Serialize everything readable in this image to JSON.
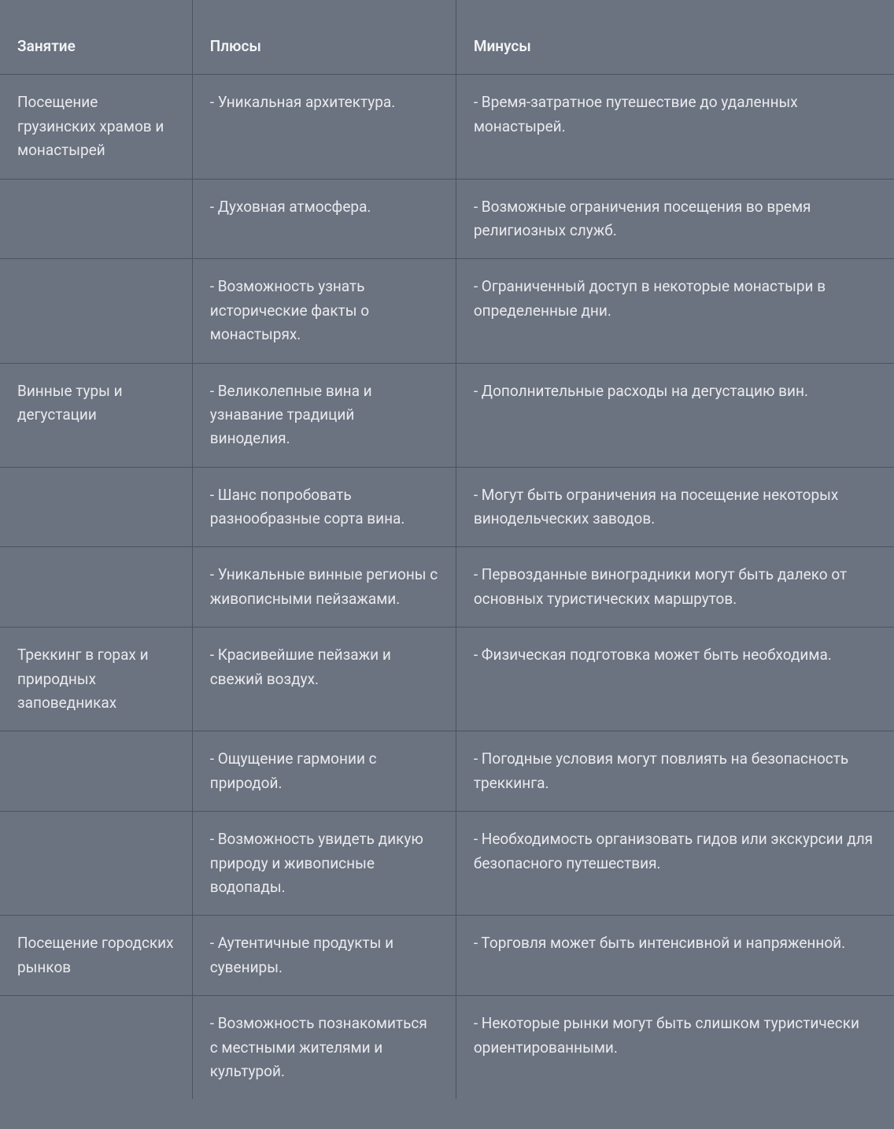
{
  "table": {
    "background_color": "#6b7280",
    "border_color": "#4a5461",
    "text_color": "#e8eaed",
    "header_text_color": "#f1f3f5",
    "font_size": 19,
    "columns": [
      {
        "key": "activity",
        "label": "Занятие",
        "width_pct": 21.5
      },
      {
        "key": "plus",
        "label": "Плюсы",
        "width_pct": 29.5
      },
      {
        "key": "minus",
        "label": "Минусы",
        "width_pct": 49.0
      }
    ],
    "rows": [
      {
        "activity": "Посещение грузинских храмов и монастырей",
        "plus": "- Уникальная архитектура.",
        "minus": "- Время-затратное путешествие до удаленных монастырей."
      },
      {
        "activity": "",
        "plus": "- Духовная атмосфера.",
        "minus": "- Возможные ограничения посещения во время религиозных служб."
      },
      {
        "activity": "",
        "plus": "- Возможность узнать исторические факты о монастырях.",
        "minus": "- Ограниченный доступ в некоторые монастыри в определенные дни."
      },
      {
        "activity": "Винные туры и дегустации",
        "plus": "- Великолепные вина и узнавание традиций виноделия.",
        "minus": "- Дополнительные расходы на дегустацию вин."
      },
      {
        "activity": "",
        "plus": "- Шанс попробовать разнообразные сорта вина.",
        "minus": "- Могут быть ограничения на посещение некоторых винодельческих заводов."
      },
      {
        "activity": "",
        "plus": "- Уникальные винные регионы с живописными пейзажами.",
        "minus": "- Первозданные виноградники могут быть далеко от основных туристических маршрутов."
      },
      {
        "activity": "Треккинг в горах и природных заповедниках",
        "plus": "- Красивейшие пейзажи и свежий воздух.",
        "minus": "- Физическая подготовка может быть необходима."
      },
      {
        "activity": "",
        "plus": "- Ощущение гармонии с природой.",
        "minus": "- Погодные условия могут повлиять на безопасность треккинга."
      },
      {
        "activity": "",
        "plus": "- Возможность увидеть дикую природу и живописные водопады.",
        "minus": "- Необходимость организовать гидов или экскурсии для безопасного путешествия."
      },
      {
        "activity": "Посещение городских рынков",
        "plus": "- Аутентичные продукты и сувениры.",
        "minus": "- Торговля может быть интенсивной и напряженной."
      },
      {
        "activity": "",
        "plus": "- Возможность познакомиться с местными жителями и культурой.",
        "minus": "- Некоторые рынки могут быть слишком туристически ориентированными."
      }
    ]
  }
}
